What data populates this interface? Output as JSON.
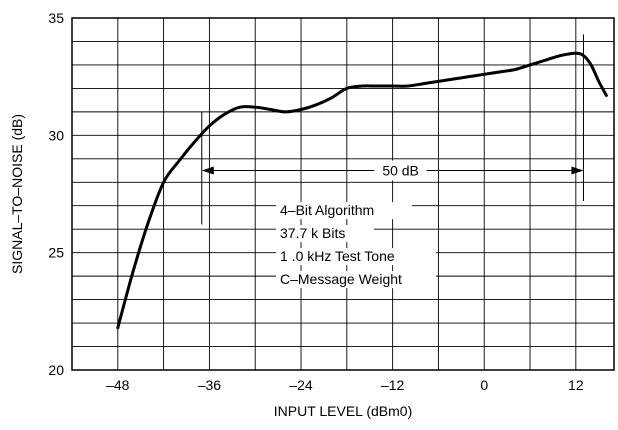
{
  "chart_data": {
    "type": "line",
    "title": "",
    "xlabel": "INPUT LEVEL (dBm0)",
    "ylabel": "SIGNAL–TO–NOISE (dB)",
    "xlim": [
      -54,
      17
    ],
    "ylim": [
      20,
      35
    ],
    "x_ticks": [
      -48,
      -36,
      -24,
      -12,
      0,
      12
    ],
    "x_tick_labels": [
      "–48",
      "–36",
      "–24",
      "–12",
      "0",
      "12"
    ],
    "y_ticks": [
      20,
      25,
      30,
      35
    ],
    "y_tick_labels": [
      "20",
      "25",
      "30",
      "35"
    ],
    "grid": true,
    "series": [
      {
        "x": [
          -48,
          -46,
          -44,
          -42,
          -40,
          -38,
          -36,
          -34,
          -32,
          -30,
          -28,
          -26,
          -24,
          -22,
          -20,
          -18,
          -16,
          -14,
          -12,
          -10,
          -8,
          -6,
          -4,
          -2,
          0,
          2,
          4,
          6,
          8,
          10,
          12,
          13,
          14,
          15,
          16
        ],
        "y": [
          21.8,
          24.2,
          26.3,
          28.0,
          28.9,
          29.7,
          30.4,
          30.9,
          31.2,
          31.2,
          31.1,
          31.0,
          31.1,
          31.3,
          31.6,
          32.0,
          32.1,
          32.1,
          32.1,
          32.1,
          32.2,
          32.3,
          32.4,
          32.5,
          32.6,
          32.7,
          32.8,
          33.0,
          33.2,
          33.4,
          33.5,
          33.4,
          33.0,
          32.3,
          31.7
        ]
      }
    ],
    "annotations": {
      "range_label": "50 dB",
      "range_from_x": -37,
      "range_to_x": 13,
      "range_y": 28.5,
      "legend_lines": [
        "4–Bit Algorithm",
        "37.7 k Bits",
        "1 .0 kHz Test Tone",
        "C–Message Weight"
      ]
    }
  }
}
